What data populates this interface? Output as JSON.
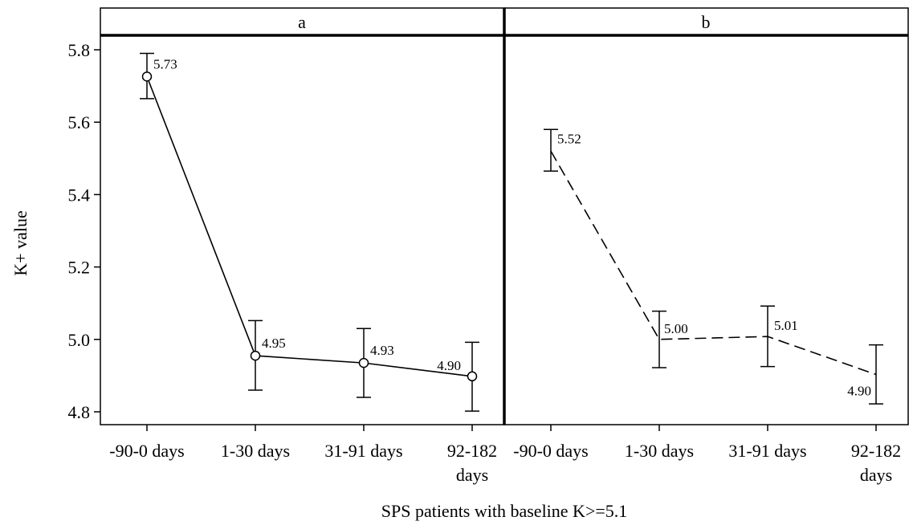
{
  "chart_data": {
    "type": "line",
    "xlabel": "SPS patients with baseline K>=5.1",
    "ylabel": "K+ value",
    "ylim": [
      4.77,
      5.9
    ],
    "yticks": [
      4.8,
      5.0,
      5.2,
      5.4,
      5.6,
      5.8
    ],
    "ytick_labels": [
      "4.8",
      "5.0",
      "5.2",
      "5.4",
      "5.6",
      "5.8"
    ],
    "categories": [
      [
        "-90-0 days"
      ],
      [
        "1-30 days"
      ],
      [
        "31-91 days"
      ],
      [
        "92-182",
        "days"
      ]
    ],
    "grid": false,
    "panels": [
      {
        "title": "a",
        "line_style": "solid",
        "marker": "circle",
        "values": [
          5.726,
          4.955,
          4.935,
          4.898
        ],
        "lower": [
          5.665,
          4.86,
          4.84,
          4.802
        ],
        "upper": [
          5.79,
          5.052,
          5.03,
          4.992
        ],
        "data_labels": [
          "5.73",
          "4.95",
          "4.93",
          "4.90"
        ]
      },
      {
        "title": "b",
        "line_style": "dashed",
        "marker": "none",
        "values": [
          5.52,
          5.0,
          5.008,
          4.903
        ],
        "lower": [
          5.465,
          4.922,
          4.925,
          4.822
        ],
        "upper": [
          5.58,
          5.078,
          5.092,
          4.985
        ],
        "data_labels": [
          "5.52",
          "5.00",
          "5.01",
          "4.90"
        ]
      }
    ]
  }
}
